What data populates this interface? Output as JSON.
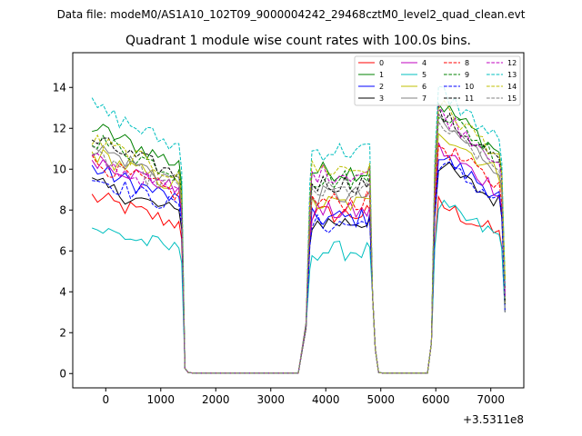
{
  "chart_data": {
    "type": "line",
    "suptitle": "Data file: modeM0/AS1A10_102T09_9000004242_29468cztM0_level2_quad_clean.evt",
    "title": "Quadrant 1 module wise count rates with 100.0s bins.",
    "xlabel": "",
    "ylabel": "",
    "x_offset_label": "+3.5311e8",
    "xlim": [
      -600,
      7600
    ],
    "ylim": [
      -0.7,
      15.7
    ],
    "xticks": [
      0,
      1000,
      2000,
      3000,
      4000,
      5000,
      6000,
      7000
    ],
    "yticks": [
      0,
      2,
      4,
      6,
      8,
      10,
      12,
      14
    ],
    "legend_position": "top-right",
    "legend_columns": 4,
    "segments": [
      {
        "x_start": -250,
        "x_end": 1250
      },
      {
        "x_start": 3850,
        "x_end": 4750
      },
      {
        "x_start": 6050,
        "x_end": 7150
      }
    ],
    "series": [
      {
        "name": "0",
        "color": "#ff0000",
        "dash": "solid",
        "levels": [
          8.0,
          7.8,
          7.7
        ]
      },
      {
        "name": "1",
        "color": "#008000",
        "dash": "solid",
        "levels": [
          11.2,
          9.9,
          12.3
        ]
      },
      {
        "name": "2",
        "color": "#0000ff",
        "dash": "solid",
        "levels": [
          9.3,
          7.6,
          9.9
        ]
      },
      {
        "name": "3",
        "color": "#000000",
        "dash": "solid",
        "levels": [
          8.6,
          7.4,
          9.5
        ]
      },
      {
        "name": "4",
        "color": "#bf00bf",
        "dash": "solid",
        "levels": [
          9.8,
          7.9,
          10.2
        ]
      },
      {
        "name": "5",
        "color": "#00bfbf",
        "dash": "solid",
        "levels": [
          6.6,
          6.0,
          7.6
        ]
      },
      {
        "name": "6",
        "color": "#bfbf00",
        "dash": "solid",
        "levels": [
          10.0,
          8.3,
          11.1
        ]
      },
      {
        "name": "7",
        "color": "#808080",
        "dash": "solid",
        "levels": [
          10.3,
          8.7,
          11.4
        ]
      },
      {
        "name": "8",
        "color": "#ff0000",
        "dash": "dashed",
        "levels": [
          9.6,
          8.4,
          10.4
        ]
      },
      {
        "name": "9",
        "color": "#008000",
        "dash": "dashed",
        "levels": [
          10.7,
          9.5,
          12.0
        ]
      },
      {
        "name": "10",
        "color": "#0000ff",
        "dash": "dashed",
        "levels": [
          8.9,
          7.3,
          9.6
        ]
      },
      {
        "name": "11",
        "color": "#000000",
        "dash": "dashed",
        "levels": [
          10.6,
          9.3,
          11.8
        ]
      },
      {
        "name": "12",
        "color": "#bf00bf",
        "dash": "dashed",
        "levels": [
          9.7,
          9.8,
          11.9
        ]
      },
      {
        "name": "13",
        "color": "#00bfbf",
        "dash": "dashed",
        "levels": [
          12.1,
          10.9,
          12.9
        ]
      },
      {
        "name": "14",
        "color": "#bfbf00",
        "dash": "dashed",
        "levels": [
          10.6,
          10.0,
          12.2
        ]
      },
      {
        "name": "15",
        "color": "#808080",
        "dash": "dashed",
        "levels": [
          9.9,
          8.9,
          11.3
        ]
      }
    ]
  }
}
